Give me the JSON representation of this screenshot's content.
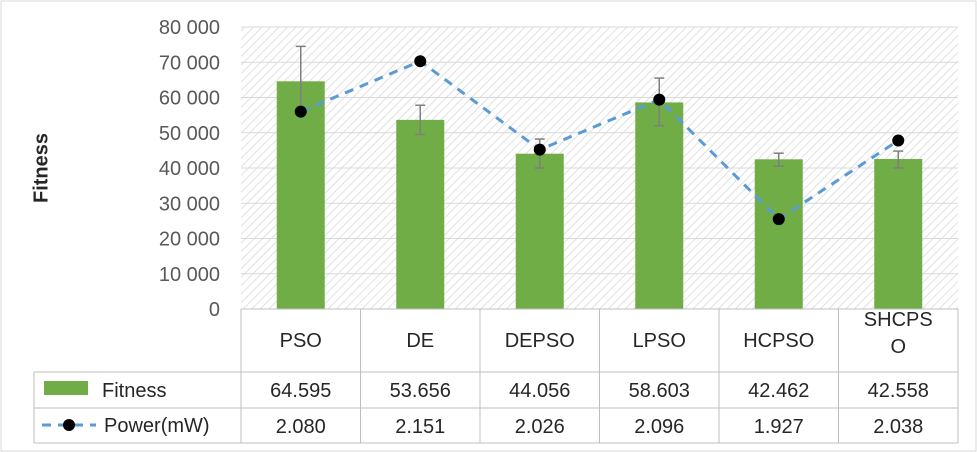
{
  "chart_data": {
    "type": "bar",
    "ylabel": "Fitness",
    "ylim": [
      0,
      80000
    ],
    "yticks": [
      0,
      10000,
      20000,
      30000,
      40000,
      50000,
      60000,
      70000,
      80000
    ],
    "ytick_labels": [
      "0",
      "10 000",
      "20 000",
      "30 000",
      "40 000",
      "50 000",
      "60 000",
      "70 000",
      "80 000"
    ],
    "categories": [
      "PSO",
      "DE",
      "DEPSO",
      "LPSO",
      "HCPSO",
      "SHCPS O"
    ],
    "grid": "diagonal-hatch background",
    "legend": "data-table",
    "series": [
      {
        "name": "Fitness",
        "kind": "bar",
        "color": "#70ad47",
        "values": [
          64595,
          53656,
          44056,
          58603,
          42462,
          42558
        ],
        "table_values": [
          "64.595",
          "53.656",
          "44.056",
          "58.603",
          "42.462",
          "42.558"
        ],
        "error_low": [
          55500,
          49500,
          40000,
          52000,
          40500,
          40000
        ],
        "error_high": [
          74500,
          57800,
          48200,
          65500,
          44200,
          44800
        ]
      },
      {
        "name": "Power(mW)",
        "kind": "line",
        "color": "#5b9bd5",
        "marker_color": "#000000",
        "values": [
          2.08,
          2.151,
          2.026,
          2.096,
          1.927,
          2.038
        ],
        "plotted_y": [
          56000,
          70300,
          45200,
          59400,
          25500,
          47800
        ],
        "table_values": [
          "2.080",
          "2.151",
          "2.026",
          "2.096",
          "1.927",
          "2.038"
        ]
      }
    ]
  }
}
